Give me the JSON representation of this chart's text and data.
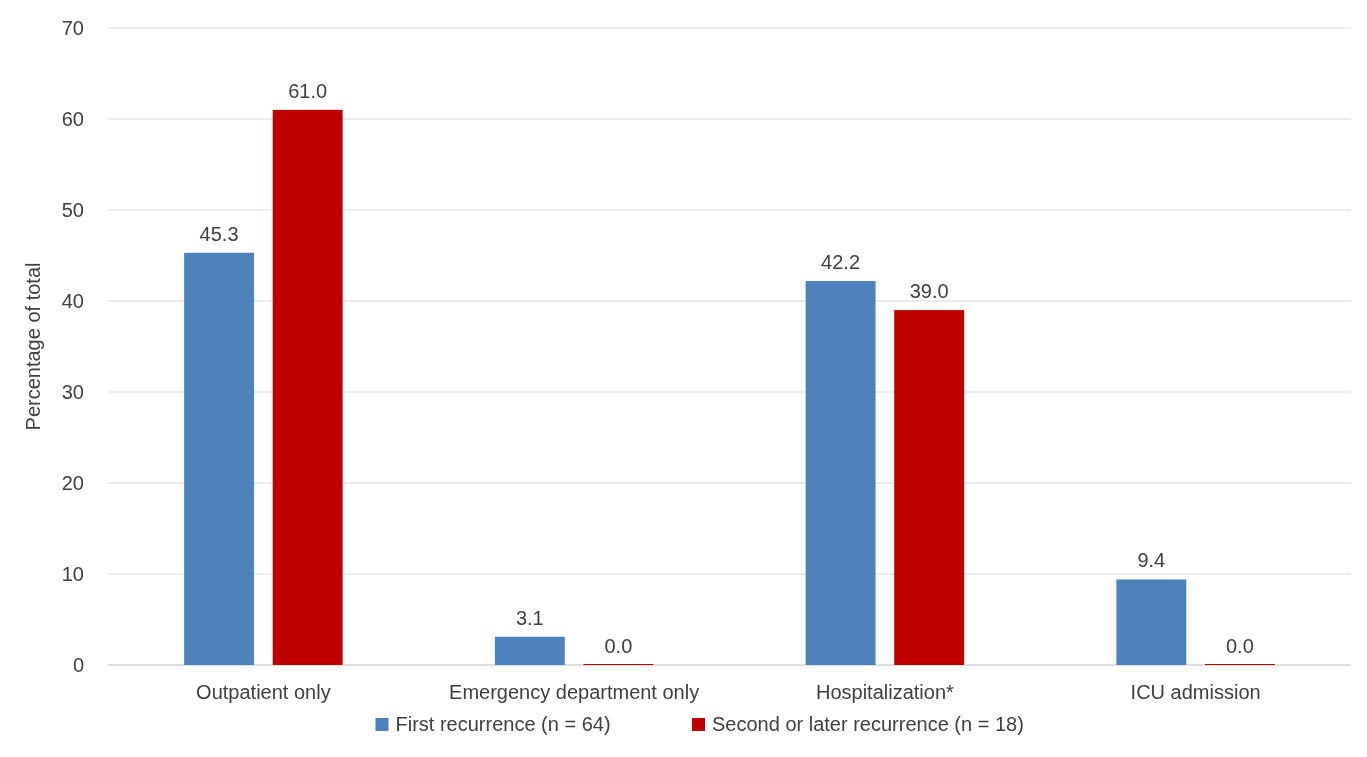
{
  "chart_data": {
    "type": "bar",
    "ylabel": "Percentage of total",
    "categories": [
      "Outpatient only",
      "Emergency department only",
      "Hospitalization*",
      "ICU admission"
    ],
    "series": [
      {
        "name": "First recurrence (n = 64)",
        "color": "#4f81bd",
        "values": [
          45.3,
          3.1,
          42.2,
          9.4
        ],
        "value_labels": [
          "45.3",
          "3.1",
          "42.2",
          "9.4"
        ]
      },
      {
        "name": "Second or later recurrence (n = 18)",
        "color": "#c00000",
        "values": [
          61.0,
          0.0,
          39.0,
          0.0
        ],
        "value_labels": [
          "61.0",
          "0.0",
          "39.0",
          "0.0"
        ]
      }
    ],
    "ylim": [
      0,
      70
    ],
    "yticks": [
      0,
      10,
      20,
      30,
      40,
      50,
      60,
      70
    ],
    "grid": "y",
    "legend": "bottom"
  }
}
